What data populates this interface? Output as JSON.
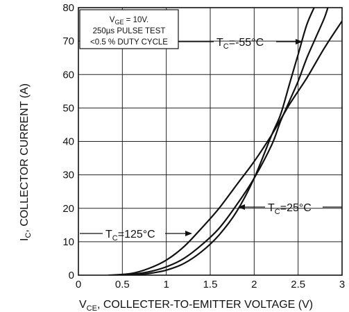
{
  "chart_data": {
    "type": "line",
    "xlim": [
      0,
      3
    ],
    "ylim": [
      0,
      80
    ],
    "grid": true,
    "x_ticks": [
      "0",
      "0.5",
      "1",
      "1.5",
      "2",
      "2.5",
      "3"
    ],
    "y_ticks": [
      "0",
      "10",
      "20",
      "30",
      "40",
      "50",
      "60",
      "70",
      "80"
    ],
    "x_label": {
      "main": "V",
      "sub": "CE",
      "rest": ", COLLECTER-TO-EMITTER VOLTAGE (V)"
    },
    "y_label": {
      "main": "I",
      "sub": "C",
      "rest": ", COLLECTOR CURRENT (A)"
    },
    "note": {
      "line1_main": "V",
      "line1_sub": "GE",
      "line1_rest": " = 10V.",
      "line2": "250µs PULSE TEST",
      "line3": "<0.5 % DUTY CYCLE"
    },
    "series": [
      {
        "name_main": "T",
        "name_sub": "C",
        "name_rest": "=-55°C",
        "x": [
          0.6,
          0.8,
          1.0,
          1.2,
          1.4,
          1.6,
          1.8,
          2.0,
          2.2,
          2.3,
          2.4,
          2.5,
          2.6,
          2.7
        ],
        "y": [
          0,
          0.5,
          1.5,
          3.5,
          7,
          12,
          19,
          29,
          42,
          48,
          57,
          66,
          75,
          81
        ]
      },
      {
        "name_main": "T",
        "name_sub": "C",
        "name_rest": "=25°C",
        "x": [
          0.55,
          0.8,
          1.0,
          1.2,
          1.4,
          1.6,
          1.8,
          2.0,
          2.2,
          2.3,
          2.4,
          2.5,
          2.6,
          2.7,
          2.8,
          2.85
        ],
        "y": [
          0,
          1,
          2.5,
          5,
          9,
          14,
          21,
          29,
          39,
          46,
          52,
          58,
          65,
          71,
          77,
          81
        ]
      },
      {
        "name_main": "T",
        "name_sub": "C",
        "name_rest": "=125°C",
        "x": [
          0.35,
          0.6,
          0.8,
          1.0,
          1.2,
          1.4,
          1.6,
          1.8,
          2.0,
          2.2,
          2.4,
          2.6,
          2.8,
          3.0
        ],
        "y": [
          0,
          0.5,
          2,
          4.5,
          8.5,
          14,
          20,
          27,
          34,
          42,
          51,
          59,
          68,
          76
        ]
      }
    ]
  }
}
